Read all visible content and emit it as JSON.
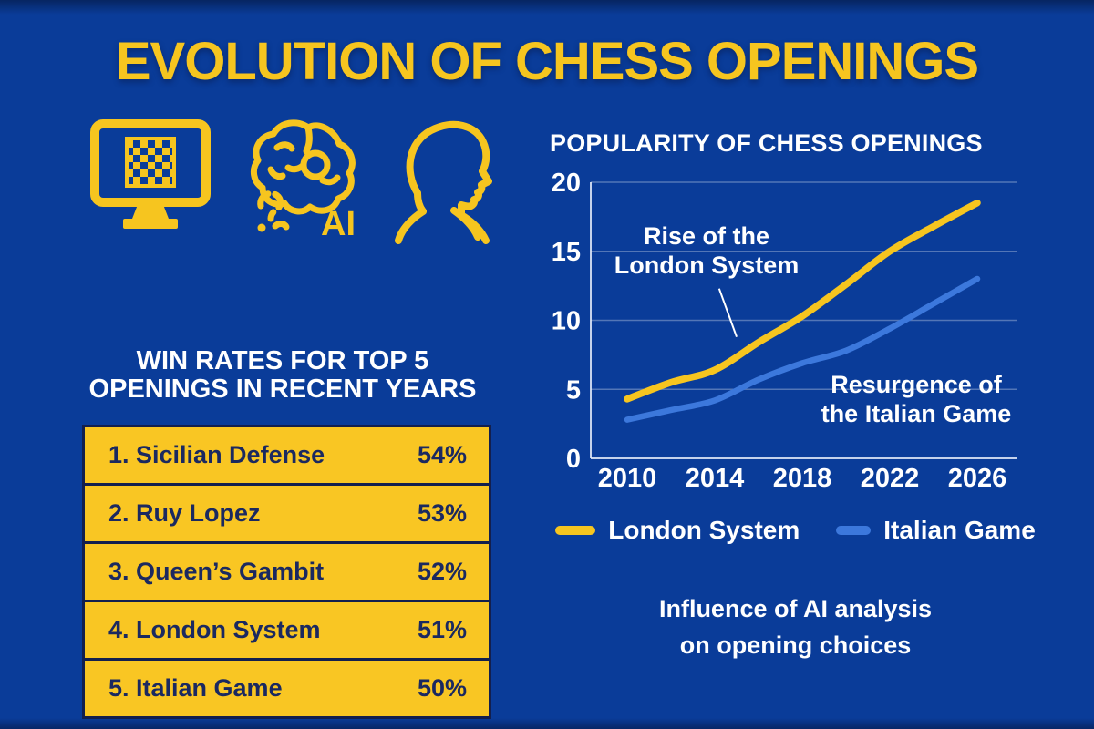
{
  "colors": {
    "background": "#0A3C99",
    "navy": "#131F4E",
    "table_text": "#1B2960",
    "yellow": "#F6C51F",
    "table_yellow": "#F9C623",
    "line_blue": "#3C78DC",
    "white": "#FFFFFF"
  },
  "title": "EVOLUTION OF CHESS OPENINGS",
  "icons": {
    "ai_label": "AI"
  },
  "win_rates": {
    "heading_line1": "WIN RATES FOR TOP 5",
    "heading_line2": "OPENINGS IN RECENT YEARS",
    "rows": [
      {
        "label": "1. Sicilian Defense",
        "value": "54%"
      },
      {
        "label": "2. Ruy Lopez",
        "value": "53%"
      },
      {
        "label": "3. Queen’s Gambit",
        "value": "52%"
      },
      {
        "label": "4. London System",
        "value": "51%"
      },
      {
        "label": "5. Italian Game",
        "value": "50%"
      }
    ]
  },
  "chart_data": {
    "type": "line",
    "title": "POPULARITY OF CHESS OPENINGS",
    "x": [
      2010,
      2012,
      2014,
      2016,
      2018,
      2020,
      2022,
      2024,
      2026
    ],
    "series": [
      {
        "name": "London System",
        "color": "#F6C51F",
        "values": [
          4.3,
          5.5,
          6.4,
          8.4,
          10.3,
          12.6,
          15.0,
          16.8,
          18.5
        ]
      },
      {
        "name": "Italian Game",
        "color": "#3C78DC",
        "values": [
          2.8,
          3.5,
          4.2,
          5.7,
          6.9,
          7.8,
          9.4,
          11.2,
          13.0
        ]
      }
    ],
    "xticks": [
      "2010",
      "2014",
      "2018",
      "2022",
      "2026"
    ],
    "yticks": [
      0,
      5,
      10,
      15,
      20
    ],
    "xlim": [
      2010,
      2026
    ],
    "ylim": [
      0,
      20
    ],
    "grid": "horizontal",
    "legend_position": "bottom",
    "annotations": {
      "london": {
        "line1": "Rise of the",
        "line2": "London System",
        "pointer_from": [
          2014.2,
          12.3
        ],
        "pointer_to": [
          2015.0,
          8.8
        ]
      },
      "italian": {
        "line1": "Resurgence of",
        "line2": "the Italian Game"
      }
    }
  },
  "caption": {
    "line1": "Influence of AI analysis",
    "line2": "on opening choices"
  }
}
